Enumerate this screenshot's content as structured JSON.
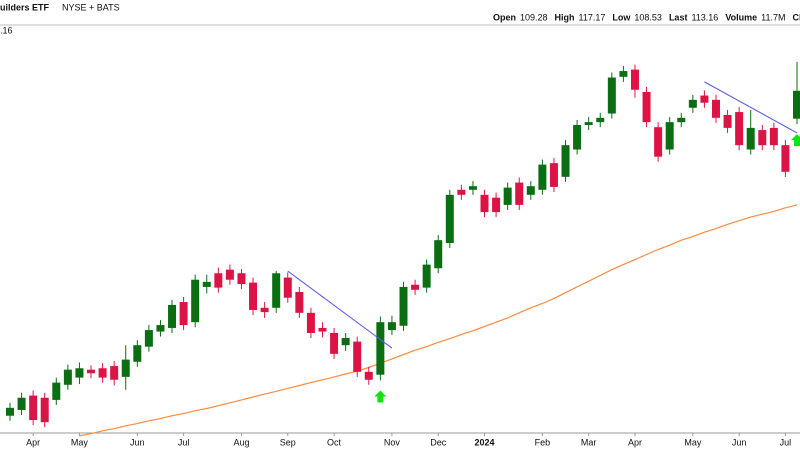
{
  "header": {
    "title": "uilders ETF",
    "exchange": "NYSE + BATS",
    "quote": [
      {
        "label": "Open",
        "value": "109.28"
      },
      {
        "label": "High",
        "value": "117.17"
      },
      {
        "label": "Low",
        "value": "108.53"
      },
      {
        "label": "Last",
        "value": "113.16"
      },
      {
        "label": "Volume",
        "value": "11.7M"
      },
      {
        "label": "Chg"
      }
    ],
    "corner_label": ".16"
  },
  "chart_data": {
    "type": "candlestick",
    "categories": [
      null,
      null,
      "Apr",
      null,
      null,
      null,
      "May",
      null,
      null,
      null,
      null,
      "Jun",
      null,
      null,
      null,
      "Jul",
      null,
      null,
      null,
      null,
      "Aug",
      null,
      null,
      null,
      "Sep",
      null,
      null,
      null,
      "Oct",
      null,
      null,
      null,
      null,
      "Nov",
      null,
      null,
      null,
      "Dec",
      null,
      null,
      null,
      "2024",
      null,
      null,
      null,
      null,
      "Feb",
      null,
      null,
      null,
      "Mar",
      null,
      null,
      null,
      "Apr",
      null,
      null,
      null,
      null,
      "May",
      null,
      null,
      null,
      "Jun",
      null,
      null,
      null,
      "Jul",
      null
    ],
    "open": [
      68.0,
      68.8,
      70.8,
      70.5,
      70.2,
      72.3,
      73.3,
      74.4,
      74.6,
      74.9,
      73.4,
      75.5,
      77.6,
      79.7,
      80.2,
      83.8,
      81.0,
      85.9,
      87.8,
      88.3,
      87.8,
      86.5,
      83.0,
      83.0,
      87.2,
      85.2,
      82.3,
      80.2,
      79.5,
      77.8,
      78.3,
      74.1,
      73.7,
      79.9,
      80.5,
      86.2,
      85.8,
      88.5,
      92.0,
      99.4,
      99.4,
      98.7,
      98.3,
      97.3,
      100.4,
      98.7,
      99.4,
      103.1,
      101.2,
      105.0,
      108.4,
      108.8,
      110.0,
      115.1,
      116.1,
      113.0,
      108.1,
      105.0,
      108.8,
      110.8,
      112.5,
      111.9,
      109.8,
      110.2,
      105.0,
      107.7,
      108.0,
      105.6,
      109.28
    ],
    "high": [
      69.8,
      71.2,
      71.5,
      71.2,
      73.3,
      75.1,
      75.4,
      75.0,
      75.3,
      75.6,
      77.8,
      78.5,
      80.6,
      81.3,
      84.1,
      84.5,
      87.6,
      87.6,
      88.6,
      89.0,
      88.4,
      87.2,
      83.8,
      88.1,
      87.9,
      85.9,
      83.0,
      81.0,
      80.2,
      79.5,
      79.0,
      74.8,
      81.8,
      81.9,
      86.6,
      86.9,
      89.7,
      93.1,
      99.4,
      100.1,
      100.6,
      99.4,
      99.0,
      100.4,
      101.1,
      100.6,
      103.6,
      103.8,
      106.3,
      109.1,
      109.5,
      110.1,
      115.7,
      116.6,
      116.8,
      113.7,
      108.8,
      109.5,
      110.1,
      112.6,
      113.2,
      112.6,
      110.5,
      110.9,
      110.5,
      108.4,
      108.7,
      106.3,
      117.17
    ],
    "low": [
      67.3,
      68.1,
      66.7,
      66.4,
      69.5,
      71.6,
      72.4,
      73.2,
      72.6,
      72.2,
      71.6,
      74.8,
      76.9,
      79.0,
      79.5,
      79.9,
      80.3,
      85.0,
      85.1,
      86.2,
      85.6,
      82.0,
      81.6,
      82.3,
      83.7,
      81.6,
      78.8,
      78.9,
      75.9,
      77.0,
      73.4,
      72.3,
      72.9,
      79.2,
      79.8,
      84.8,
      85.1,
      87.8,
      91.3,
      98.0,
      98.7,
      95.6,
      95.6,
      96.6,
      96.6,
      98.0,
      98.7,
      99.1,
      100.5,
      104.3,
      107.7,
      108.1,
      109.3,
      114.4,
      112.2,
      108.1,
      103.3,
      104.3,
      108.1,
      110.1,
      110.8,
      108.7,
      107.3,
      104.9,
      104.3,
      104.9,
      104.9,
      101.2,
      108.53
    ],
    "close": [
      69.1,
      70.5,
      67.4,
      67.1,
      72.6,
      74.4,
      74.6,
      73.9,
      73.3,
      73.0,
      75.8,
      77.8,
      79.9,
      80.6,
      83.4,
      80.6,
      86.9,
      86.6,
      85.8,
      86.9,
      86.3,
      82.7,
      82.4,
      87.8,
      84.4,
      82.3,
      79.5,
      79.7,
      76.6,
      78.8,
      74.1,
      73.0,
      81.0,
      81.0,
      85.9,
      85.5,
      89.0,
      92.4,
      98.7,
      98.7,
      99.9,
      96.3,
      96.3,
      99.7,
      97.3,
      99.9,
      102.9,
      99.8,
      105.6,
      108.4,
      108.8,
      109.4,
      115.0,
      115.9,
      113.3,
      108.8,
      104.0,
      108.8,
      109.4,
      111.9,
      111.5,
      109.4,
      108.0,
      105.6,
      108.0,
      105.6,
      105.6,
      101.9,
      113.16
    ],
    "moving_average": {
      "color": "#ff8a3d",
      "values": [
        null,
        null,
        null,
        null,
        null,
        null,
        65.2,
        65.5,
        65.9,
        66.2,
        66.6,
        66.9,
        67.3,
        67.6,
        68.0,
        68.3,
        68.7,
        69.0,
        69.4,
        69.8,
        70.2,
        70.6,
        71.0,
        71.4,
        71.8,
        72.2,
        72.6,
        73.0,
        73.4,
        73.8,
        74.2,
        74.7,
        75.3,
        75.9,
        76.5,
        77.1,
        77.6,
        78.2,
        78.7,
        79.3,
        79.8,
        80.4,
        81.0,
        81.6,
        82.3,
        83.0,
        83.6,
        84.3,
        85.1,
        85.9,
        86.7,
        87.5,
        88.3,
        89.0,
        89.7,
        90.4,
        91.1,
        91.7,
        92.4,
        92.9,
        93.5,
        94.0,
        94.6,
        95.1,
        95.6,
        96.0,
        96.4,
        96.9,
        97.3
      ]
    },
    "trendlines": {
      "color": "#5c5cf0",
      "lines": [
        {
          "x": [
            24,
            33
          ],
          "y": [
            88.1,
            77.4
          ]
        },
        {
          "x": [
            60,
            68
          ],
          "y": [
            114.4,
            107.3
          ]
        }
      ]
    },
    "signals": {
      "color": "#11e011",
      "x": [
        32,
        68
      ]
    },
    "up_color": "#0b6e12",
    "down_color": "#dc1446",
    "ylim": [
      65.6,
      122.3
    ]
  }
}
